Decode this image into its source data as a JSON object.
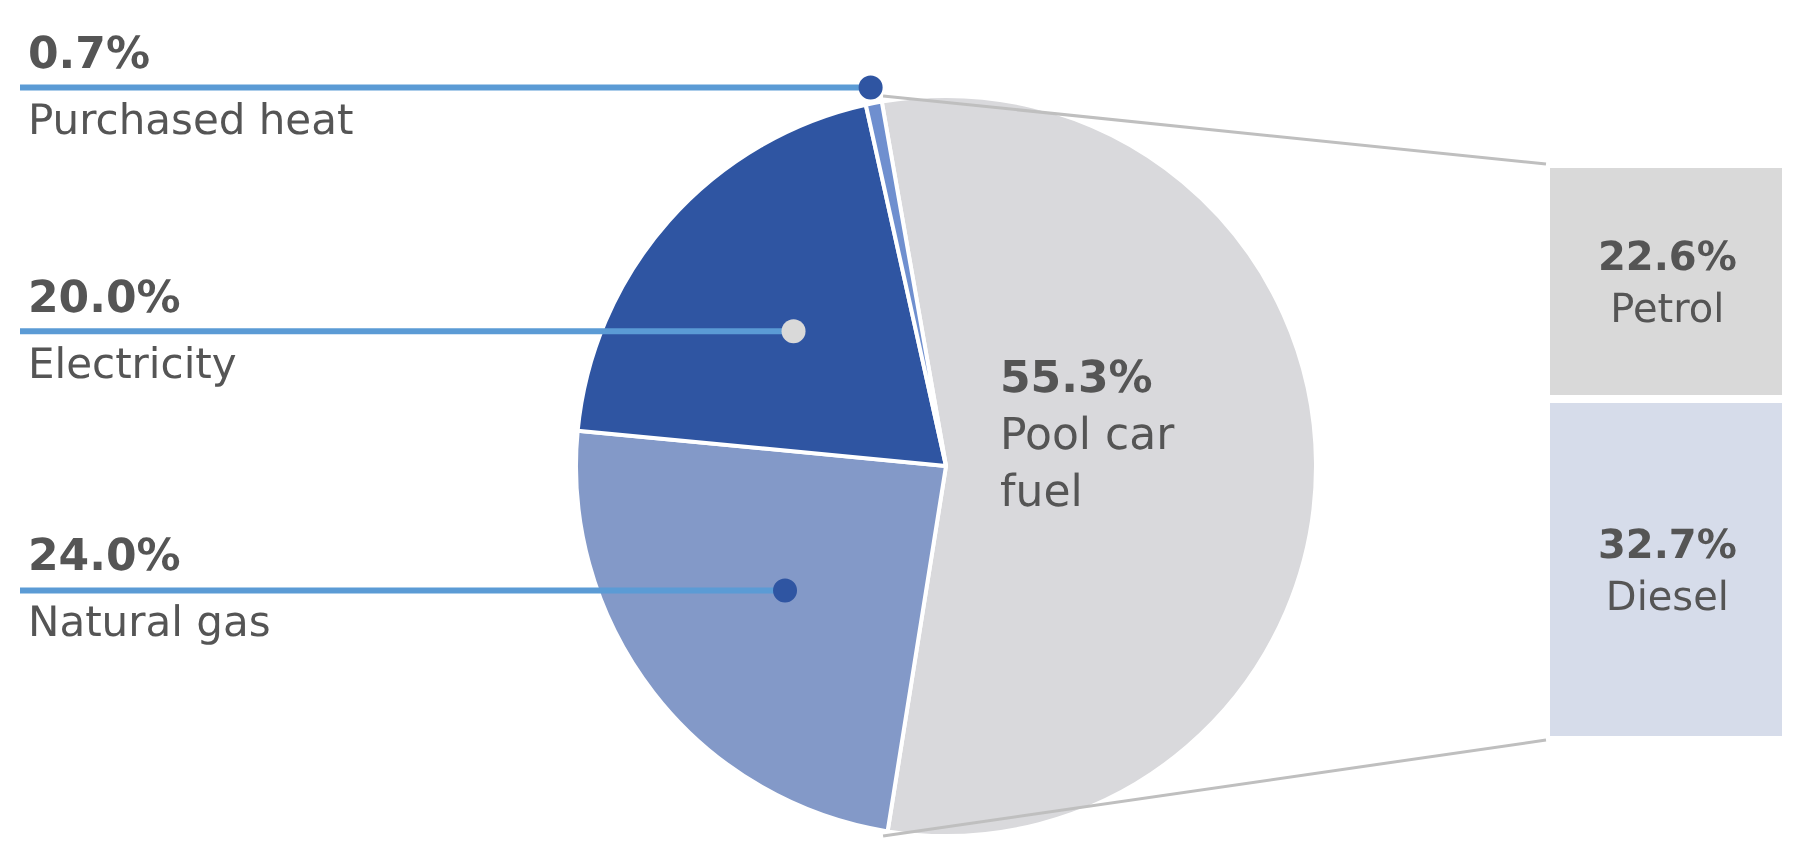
{
  "chart_data": [
    {
      "type": "pie",
      "categories": [
        "Pool car fuel",
        "Natural gas",
        "Electricity",
        "Purchased heat"
      ],
      "values": [
        55.3,
        24.0,
        20.0,
        0.7
      ],
      "value_labels": [
        "55.3%",
        "24.0%",
        "20.0%",
        "0.7%"
      ],
      "colors": [
        "#d9d9dc",
        "#8399c8",
        "#2f55a2",
        "#6f8fcf"
      ]
    },
    {
      "type": "bar",
      "stacked": true,
      "categories": [
        null
      ],
      "ylim": [
        0,
        55.3
      ],
      "tick_labels": false,
      "series": [
        {
          "name": "Diesel",
          "color": "#d6dcea",
          "values": [
            32.7
          ],
          "value_labels": [
            "32.7%"
          ]
        },
        {
          "name": "Petrol",
          "color": "#d9d9d9",
          "values": [
            22.6
          ],
          "value_labels": [
            "22.6%"
          ]
        }
      ]
    }
  ]
}
